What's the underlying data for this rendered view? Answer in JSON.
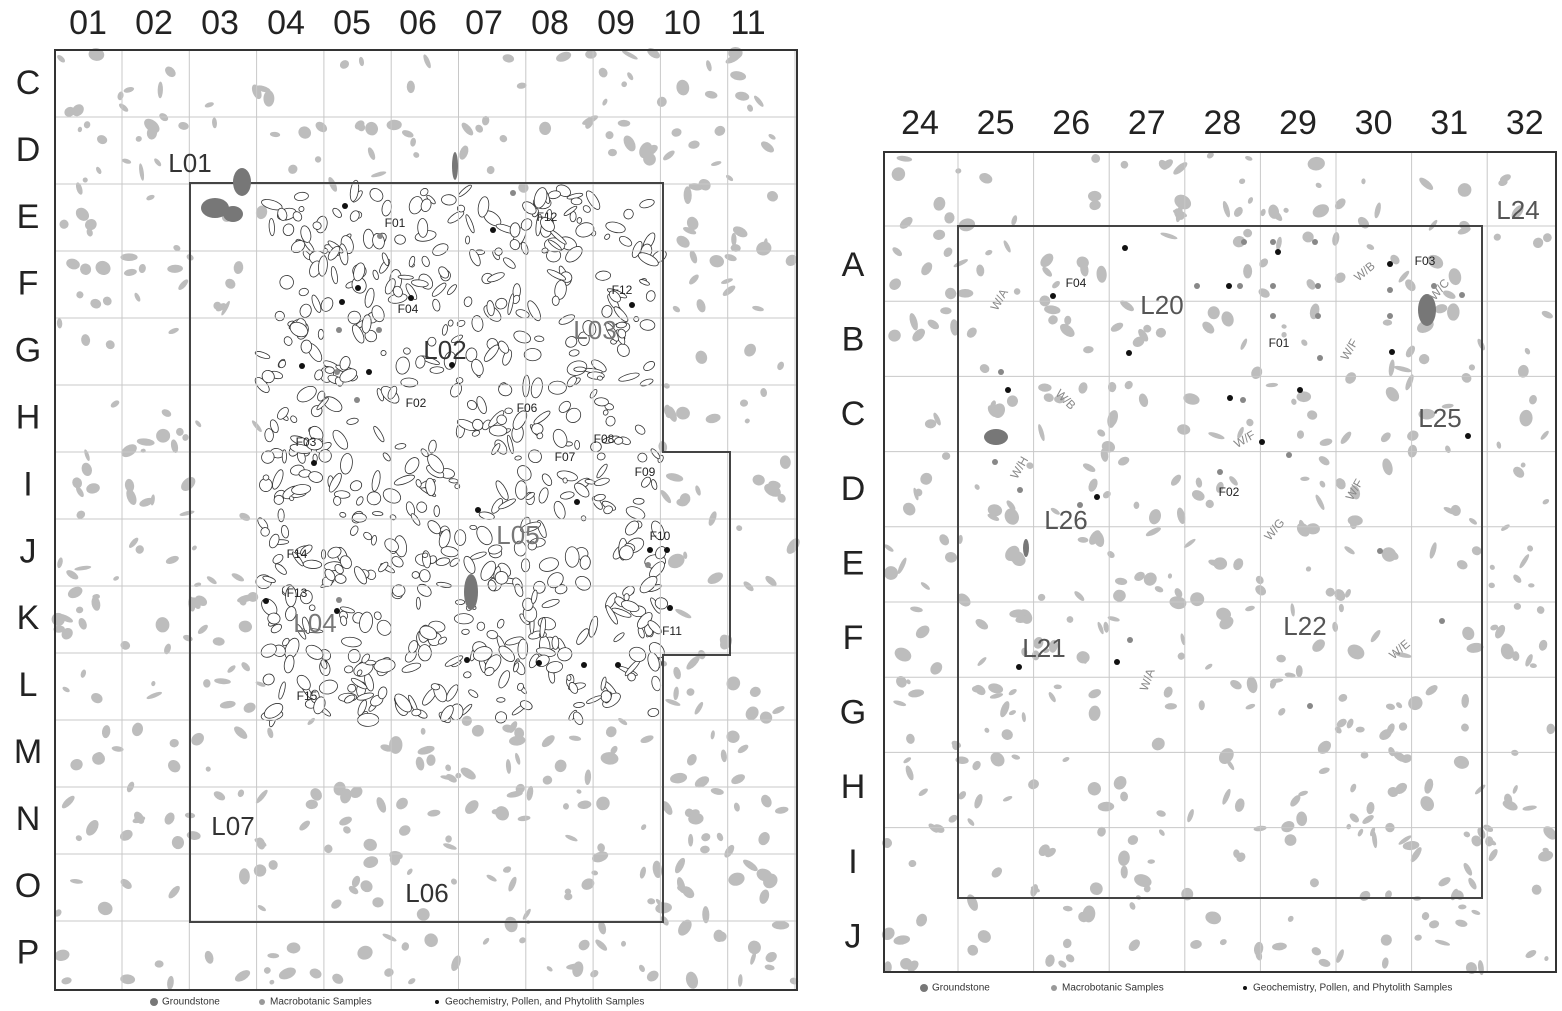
{
  "left_map": {
    "column_labels": [
      "01",
      "02",
      "03",
      "04",
      "05",
      "06",
      "07",
      "08",
      "09",
      "10",
      "11"
    ],
    "row_labels": [
      "C",
      "D",
      "E",
      "F",
      "G",
      "H",
      "I",
      "J",
      "K",
      "L",
      "M",
      "N",
      "O",
      "P"
    ],
    "loci": [
      "L01",
      "L02",
      "L03",
      "L04",
      "L05",
      "L06",
      "L07"
    ],
    "features": [
      "F01",
      "F02",
      "F03",
      "F04",
      "F06",
      "F07",
      "F08",
      "F09",
      "F10",
      "F11",
      "F12",
      "F12",
      "F13",
      "F14",
      "F15"
    ],
    "legend": [
      "Groundstone",
      "Macrobotanic Samples",
      "Geochemistry, Pollen, and Phytolith Samples"
    ]
  },
  "right_map": {
    "column_labels": [
      "24",
      "25",
      "26",
      "27",
      "28",
      "29",
      "30",
      "31",
      "32"
    ],
    "row_labels": [
      "A",
      "B",
      "C",
      "D",
      "E",
      "F",
      "G",
      "H",
      "I",
      "J"
    ],
    "loci": [
      "L20",
      "L21",
      "L22",
      "L24",
      "L25",
      "L26"
    ],
    "features": [
      "F01",
      "F02",
      "F03",
      "F04"
    ],
    "wall_labels": [
      "W/A",
      "W/B",
      "W/C",
      "W/B",
      "W/F",
      "W/H",
      "W/F",
      "W/G",
      "W/F",
      "W/A",
      "W/E"
    ],
    "legend": [
      "Groundstone",
      "Macrobotanic Samples",
      "Geochemistry, Pollen, and Phytolith Samples"
    ]
  }
}
